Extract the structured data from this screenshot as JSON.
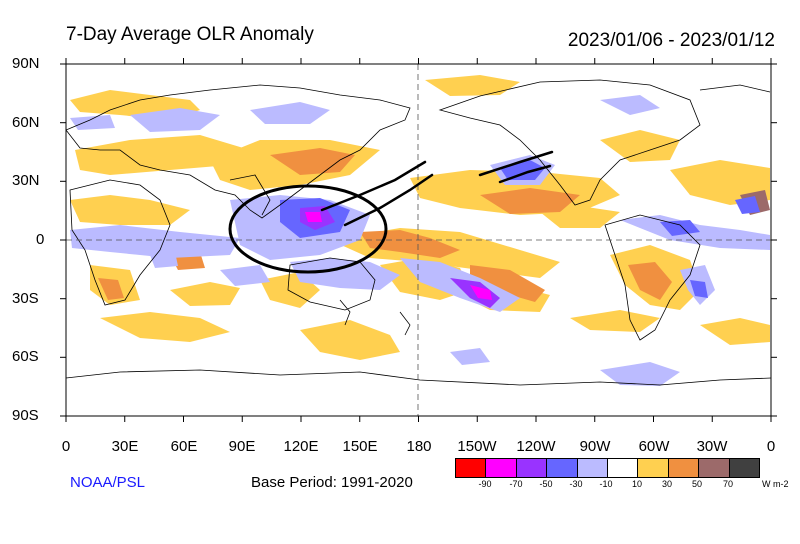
{
  "title": "7-Day Average OLR Anomaly",
  "date_range": "2023/01/06 - 2023/01/12",
  "y_axis": [
    "90N",
    "60N",
    "30N",
    "0",
    "30S",
    "60S",
    "90S"
  ],
  "x_axis": [
    "0",
    "30E",
    "60E",
    "90E",
    "120E",
    "150E",
    "180",
    "150W",
    "120W",
    "90W",
    "60W",
    "30W",
    "0"
  ],
  "credit": "NOAA/PSL",
  "base_period": "Base Period: 1991-2020",
  "colorbar": {
    "colors": [
      "#ff0000",
      "#ff00ff",
      "#9933ff",
      "#6666ff",
      "#bbbbff",
      "#ffffff",
      "#ffd050",
      "#f09040",
      "#9c6a6a",
      "#404040"
    ],
    "labels": [
      "-90",
      "-70",
      "-50",
      "-30",
      "-10",
      "10",
      "30",
      "50",
      "70"
    ],
    "units": "W m-2"
  }
}
